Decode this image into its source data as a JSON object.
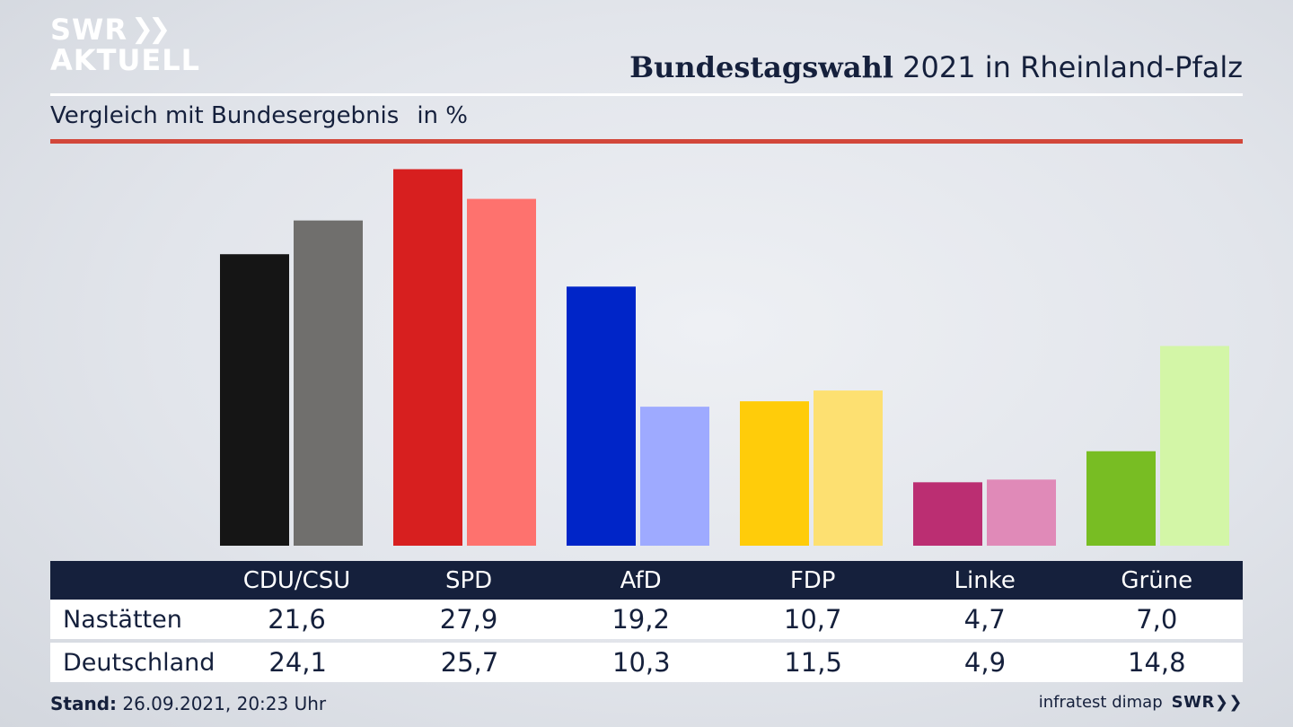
{
  "branding": {
    "logo_line1": "SWR",
    "logo_line2": "AKTUELL",
    "footer_logo": "SWR"
  },
  "header": {
    "title_bold": "Bundestagswahl",
    "title_rest": " 2021 in Rheinland-Pfalz",
    "subtitle": "Vergleich mit Bundesergebnis",
    "unit": "in %"
  },
  "colors": {
    "title_text": "#15203c",
    "rule_red": "#d2473a",
    "table_header_bg": "#15203c"
  },
  "chart_data": {
    "type": "bar",
    "title": "Bundestagswahl 2021 in Rheinland-Pfalz",
    "subtitle": "Vergleich mit Bundesergebnis in %",
    "categories": [
      "CDU/CSU",
      "SPD",
      "AfD",
      "FDP",
      "Linke",
      "Grüne"
    ],
    "series": [
      {
        "name": "Nastätten",
        "values": [
          21.6,
          27.9,
          19.2,
          10.7,
          4.7,
          7.0
        ],
        "colors": [
          "#151515",
          "#d71f1f",
          "#0025c8",
          "#ffcc0a",
          "#bb2e72",
          "#78bd23"
        ]
      },
      {
        "name": "Deutschland",
        "values": [
          24.1,
          25.7,
          10.3,
          11.5,
          4.9,
          14.8
        ],
        "colors": [
          "#706f6d",
          "#fe726e",
          "#9eaaff",
          "#fde071",
          "#e08ab8",
          "#d3f6a7"
        ]
      }
    ],
    "ylim": [
      0,
      28
    ],
    "grid": false,
    "legend": "table below chart"
  },
  "table": {
    "columns": [
      "CDU/CSU",
      "SPD",
      "AfD",
      "FDP",
      "Linke",
      "Grüne"
    ],
    "rows": [
      {
        "label": "Nastätten",
        "values": [
          "21,6",
          "27,9",
          "19,2",
          "10,7",
          "4,7",
          "7,0"
        ]
      },
      {
        "label": "Deutschland",
        "values": [
          "24,1",
          "25,7",
          "10,3",
          "11,5",
          "4,9",
          "14,8"
        ]
      }
    ]
  },
  "footer": {
    "stand_label": "Stand:",
    "stand_value": " 26.09.2021, 20:23 Uhr",
    "source": "infratest dimap"
  }
}
